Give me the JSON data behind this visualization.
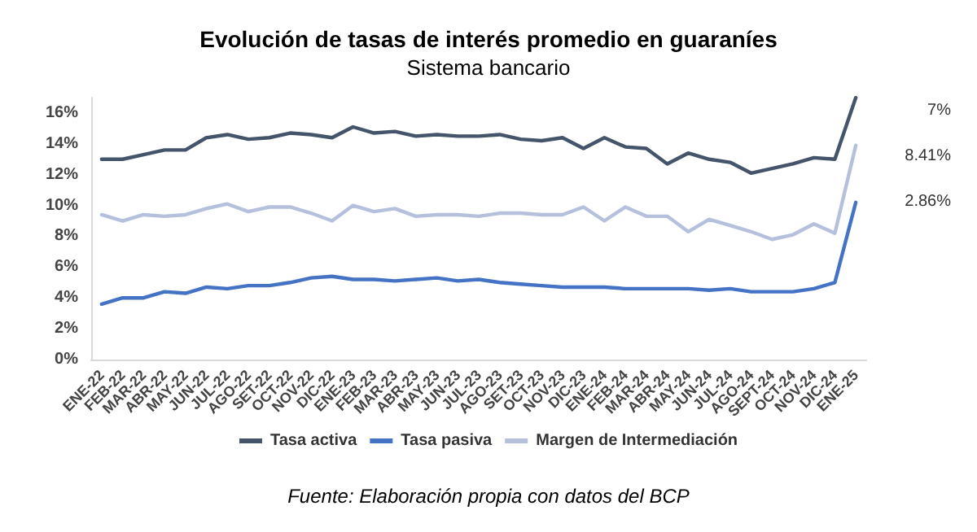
{
  "chart_data": {
    "type": "line",
    "title": "Evolución de tasas de interés promedio en guaraníes",
    "subtitle": "Sistema bancario",
    "annotations": [
      "Fuente: Elaboración propia con datos del BCP",
      "7%",
      "8.41%",
      "2.86%"
    ],
    "categories": [
      "ENE-22",
      "FEB-22",
      "MAR-22",
      "ABR-22",
      "MAY-22",
      "JUN-22",
      "JUL-22",
      "AGO-22",
      "SET-22",
      "OCT-22",
      "NOV-22",
      "DIC-22",
      "ENE-23",
      "FEB-23",
      "MAR-23",
      "ABR-23",
      "MAY-23",
      "JUN-23",
      "JUL-23",
      "AGO-23",
      "SET-23",
      "OCT-23",
      "NOV-23",
      "DIC-23",
      "ENE-24",
      "FEB-24",
      "MAR-24",
      "ABR-24",
      "MAY-24",
      "JUN-24",
      "JUL-24",
      "AGO-24",
      "SEPT-24",
      "OCT-24",
      "NOV-24",
      "DIC-24",
      "ENE-25"
    ],
    "series": [
      {
        "name": "Tasa activa",
        "color": "#44546a",
        "values": [
          13.0,
          13.0,
          13.3,
          13.6,
          13.6,
          14.4,
          14.6,
          14.3,
          14.4,
          14.7,
          14.6,
          14.4,
          15.1,
          14.7,
          14.8,
          14.5,
          14.6,
          14.5,
          14.5,
          14.6,
          14.3,
          14.2,
          14.4,
          13.7,
          14.4,
          13.8,
          13.7,
          12.7,
          13.4,
          13.0,
          12.8,
          12.1,
          12.4,
          12.7,
          13.1,
          13.0,
          17
        ]
      },
      {
        "name": "Tasa pasiva",
        "color": "#4472c4",
        "values": [
          3.6,
          4.0,
          4.0,
          4.4,
          4.3,
          4.7,
          4.6,
          4.8,
          4.8,
          5.0,
          5.3,
          5.4,
          5.2,
          5.2,
          5.1,
          5.2,
          5.3,
          5.1,
          5.2,
          5.0,
          4.9,
          4.8,
          4.7,
          4.7,
          4.7,
          4.6,
          4.6,
          4.6,
          4.6,
          4.5,
          4.6,
          4.4,
          4.4,
          4.4,
          4.6,
          5.0,
          10.2
        ]
      },
      {
        "name": "Margen de Intermediación",
        "color": "#b4c0dc",
        "values": [
          9.4,
          9.0,
          9.4,
          9.3,
          9.4,
          9.8,
          10.1,
          9.6,
          9.9,
          9.9,
          9.5,
          9.0,
          10.0,
          9.6,
          9.8,
          9.3,
          9.4,
          9.4,
          9.3,
          9.5,
          9.5,
          9.4,
          9.4,
          9.9,
          9.0,
          9.9,
          9.3,
          9.3,
          8.3,
          9.1,
          8.7,
          8.3,
          7.8,
          8.1,
          8.8,
          8.2,
          13.9
        ]
      }
    ],
    "ylim": [
      0,
      17
    ],
    "yticks": [
      {
        "value": 0,
        "label": "0%"
      },
      {
        "value": 2,
        "label": "2%"
      },
      {
        "value": 4,
        "label": "4%"
      },
      {
        "value": 6,
        "label": "6%"
      },
      {
        "value": 8,
        "label": "8%"
      },
      {
        "value": 10,
        "label": "10%"
      },
      {
        "value": 12,
        "label": "12%"
      },
      {
        "value": 14,
        "label": "14%"
      },
      {
        "value": 16,
        "label": "16%"
      }
    ],
    "grid": false,
    "legend": "bottom",
    "marker": "none",
    "line_style": "solid"
  }
}
